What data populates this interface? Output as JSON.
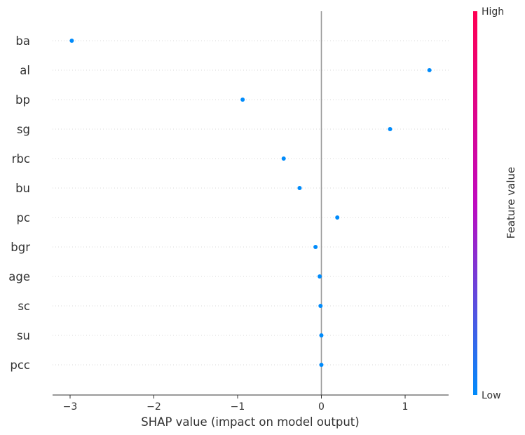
{
  "chart_data": {
    "type": "scatter",
    "subtype": "shap-summary-beeswarm",
    "title": "",
    "xlabel": "SHAP value (impact on model output)",
    "xlim": [
      -3.2,
      1.5
    ],
    "xticks": [
      -3,
      -2,
      -1,
      0,
      1
    ],
    "xtick_labels": [
      "−3",
      "−2",
      "−1",
      "0",
      "1"
    ],
    "features": [
      "ba",
      "al",
      "bp",
      "sg",
      "rbc",
      "bu",
      "pc",
      "bgr",
      "age",
      "sc",
      "su",
      "pcc"
    ],
    "shap_values": [
      -2.98,
      1.29,
      -0.94,
      0.82,
      -0.45,
      -0.26,
      0.19,
      -0.07,
      -0.02,
      -0.01,
      0.0,
      0.0
    ],
    "point_color": "#008bfb",
    "zero_line_color": "#999999",
    "grid": "dotted-horizontal",
    "colorbar": {
      "label": "Feature value",
      "high_label": "High",
      "low_label": "Low",
      "high_color": "#ff0052",
      "mid_color": "#bf0abf",
      "low_color": "#008bfb",
      "position": "right"
    }
  }
}
